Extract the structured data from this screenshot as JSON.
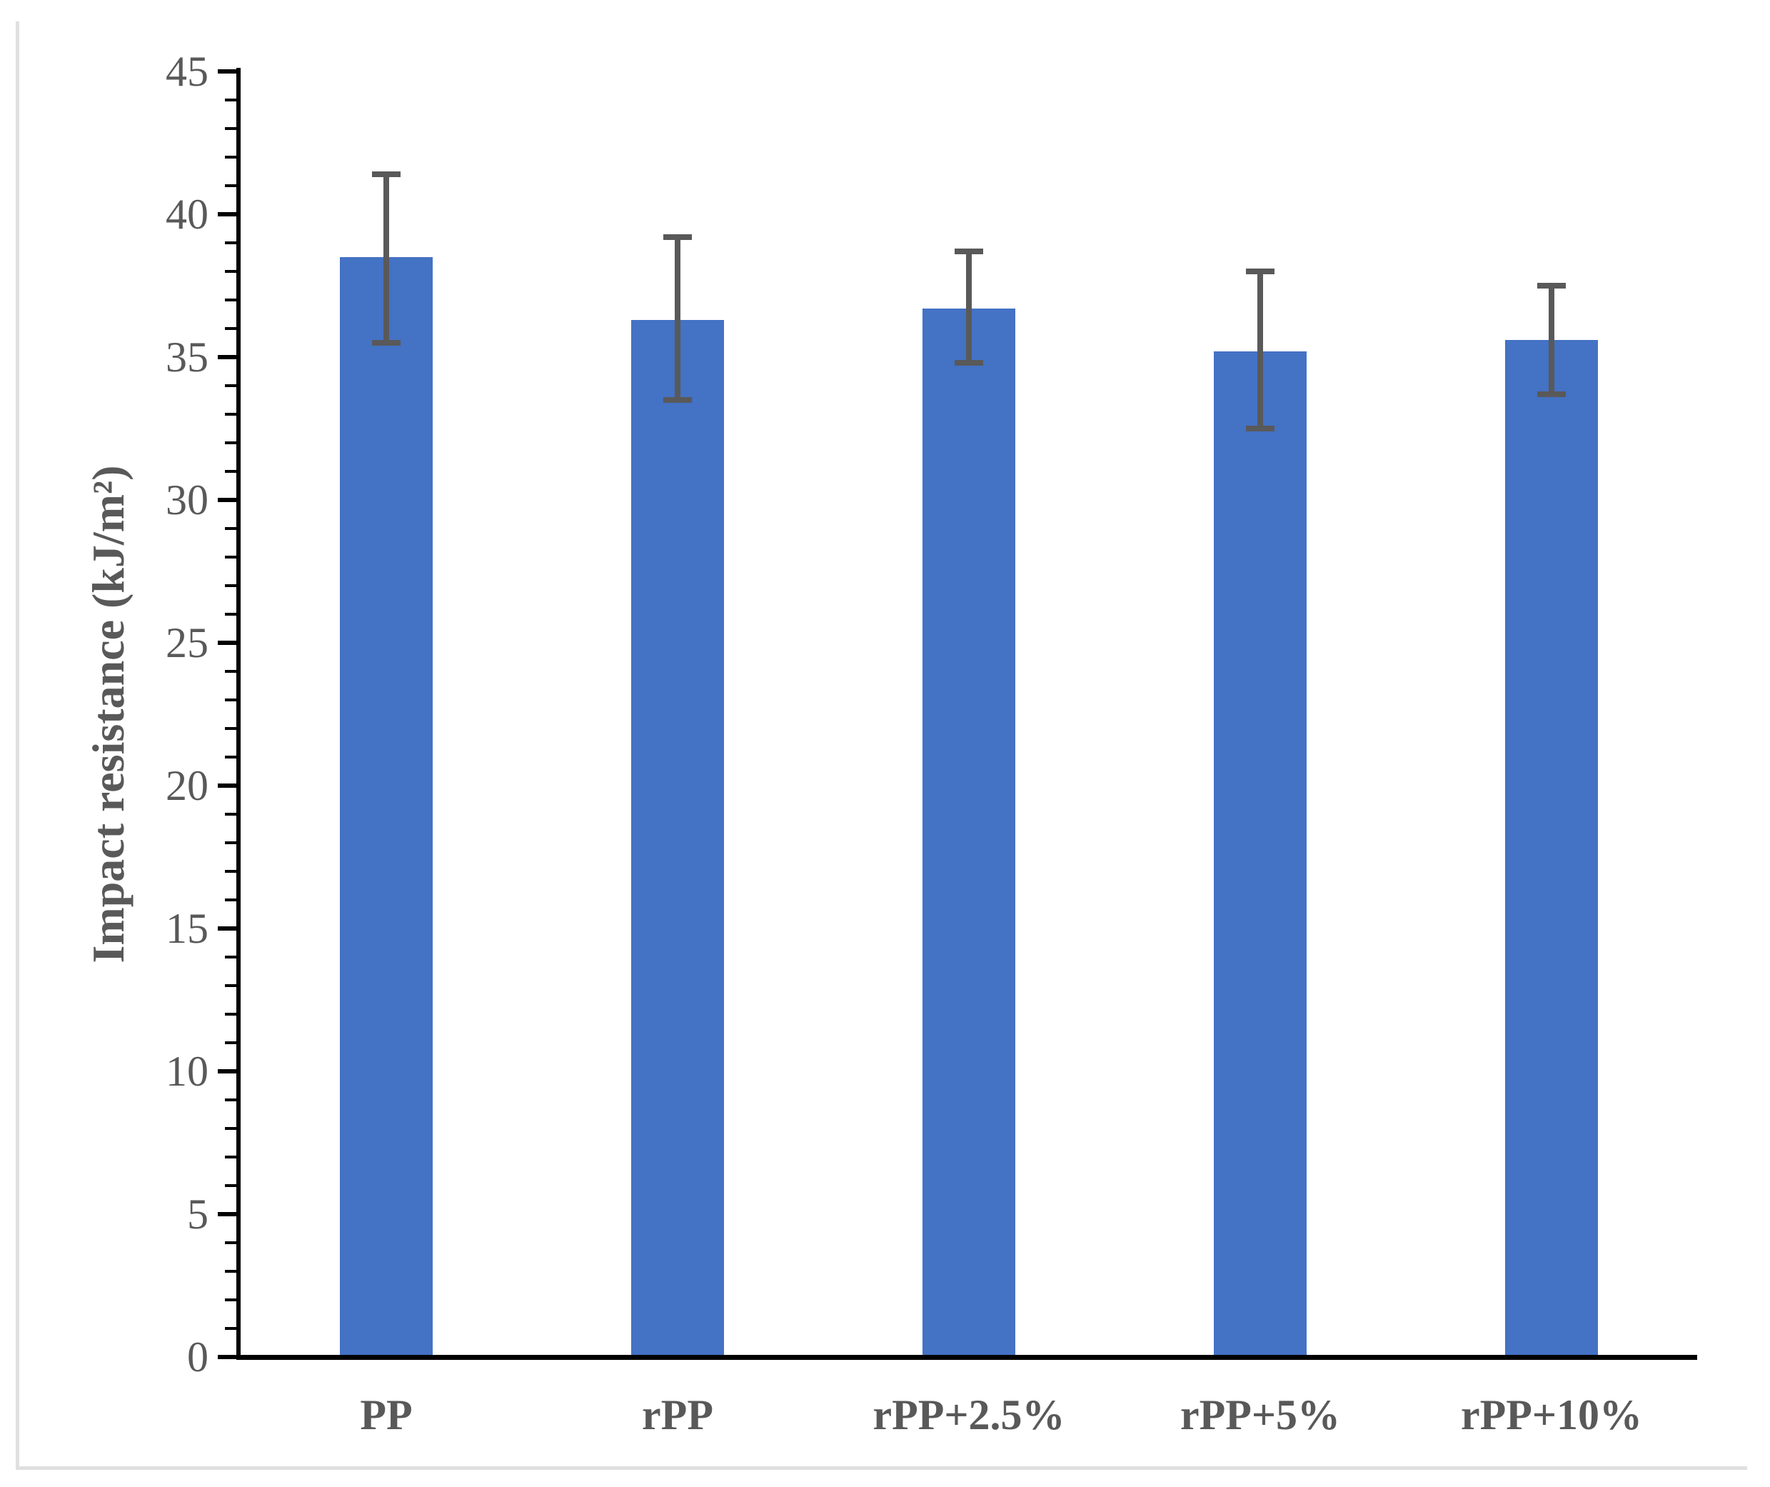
{
  "chart_data": {
    "type": "bar",
    "title": "",
    "xlabel": "",
    "ylabel": "Impact resistance (kJ/m²)",
    "categories": [
      "PP",
      "rPP",
      "rPP+2.5%",
      "rPP+5%",
      "rPP+10%"
    ],
    "values": [
      38.5,
      36.3,
      36.7,
      35.2,
      35.6
    ],
    "error_upper": [
      41.4,
      39.2,
      38.7,
      38.0,
      37.5
    ],
    "error_lower": [
      35.5,
      33.5,
      34.8,
      32.5,
      33.7
    ],
    "ylim": [
      0,
      45
    ],
    "ytick_step": 5,
    "ytick_minor_step": 1,
    "ytick_labels": [
      "45",
      "40",
      "35",
      "30",
      "25",
      "20",
      "15",
      "10",
      "5",
      "0"
    ],
    "grid": false,
    "legend": false,
    "bar_color": "#4472C4",
    "error_bar_color": "#595959",
    "axis_color": "#000000",
    "text_color": "#595959"
  }
}
